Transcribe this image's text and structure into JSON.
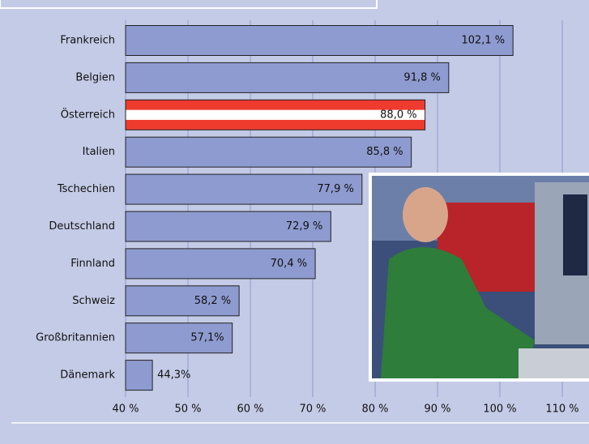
{
  "chart_data": {
    "type": "bar",
    "orientation": "horizontal",
    "categories": [
      "Frankreich",
      "Belgien",
      "Österreich",
      "Italien",
      "Tschechien",
      "Deutschland",
      "Finnland",
      "Schweiz",
      "Großbritannien",
      "Dänemark"
    ],
    "values": [
      102.1,
      91.8,
      88.0,
      85.8,
      77.9,
      72.9,
      70.4,
      58.2,
      57.1,
      44.3
    ],
    "value_labels": [
      "102,1 %",
      "91,8 %",
      "88,0 %",
      "85,8 %",
      "77,9 %",
      "72,9 %",
      "70,4 %",
      "58,2 %",
      "57,1%",
      "44,3%"
    ],
    "colors": [
      "#8e9bd0",
      "#8e9bd0",
      "#ee3b2e",
      "#8e9bd0",
      "#8e9bd0",
      "#8e9bd0",
      "#8e9bd0",
      "#8e9bd0",
      "#8e9bd0",
      "#8e9bd0"
    ],
    "xlim": [
      40,
      110
    ],
    "xticks": [
      {
        "value": 40,
        "label": "40 %"
      },
      {
        "value": 50,
        "label": "50 %"
      },
      {
        "value": 60,
        "label": "60 %"
      },
      {
        "value": 70,
        "label": "70 %"
      },
      {
        "value": 80,
        "label": "80 %"
      },
      {
        "value": 90,
        "label": "90 %"
      },
      {
        "value": 100,
        "label": "100 %"
      },
      {
        "value": 110,
        "label": "110 %"
      }
    ],
    "grid": true
  }
}
